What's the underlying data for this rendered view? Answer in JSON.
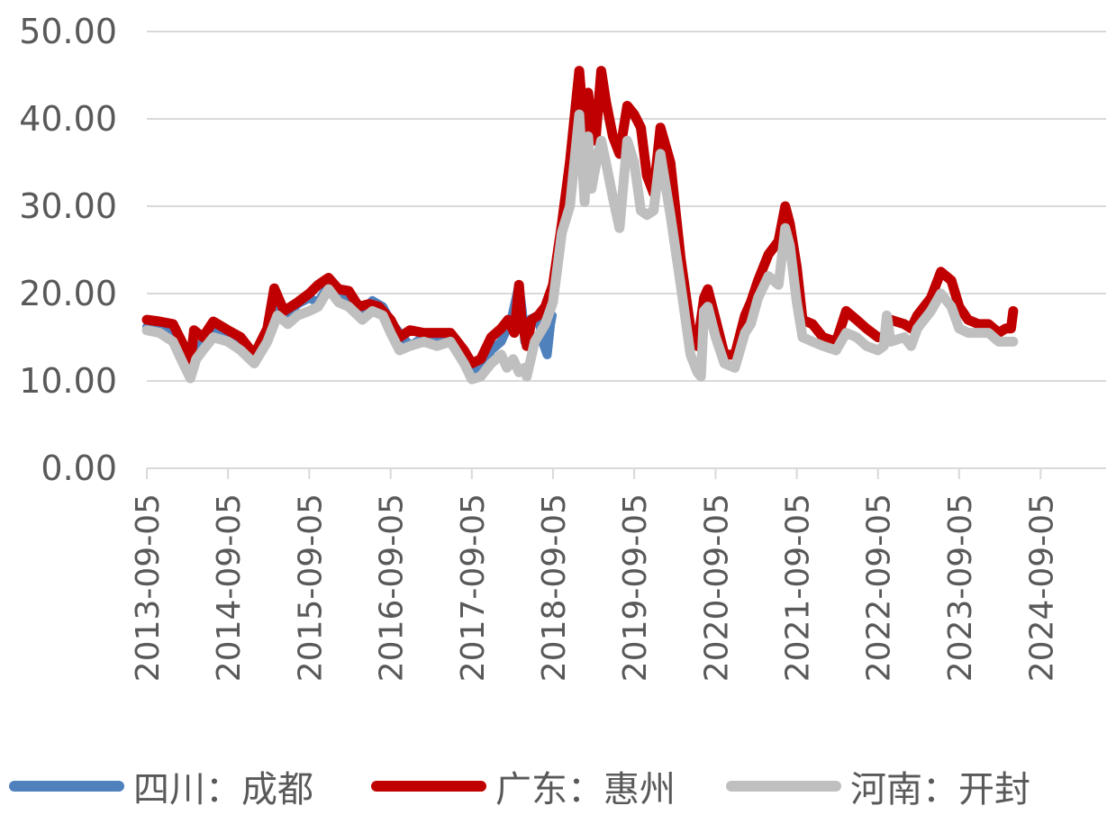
{
  "chart_data": {
    "type": "line",
    "title": "",
    "xlabel": "",
    "ylabel": "",
    "ylim": [
      0,
      50
    ],
    "xlim": [
      "2013-09-05",
      "2025-05-05"
    ],
    "y_ticks": [
      "0.00",
      "10.00",
      "20.00",
      "30.00",
      "40.00",
      "50.00"
    ],
    "x_ticks": [
      "2013-09-05",
      "2014-09-05",
      "2015-09-05",
      "2016-09-05",
      "2017-09-05",
      "2018-09-05",
      "2019-09-05",
      "2020-09-05",
      "2021-09-05",
      "2022-09-05",
      "2023-09-05",
      "2024-09-05"
    ],
    "grid": "horizontal",
    "legend_position": "bottom",
    "series": [
      {
        "name": "四川：成都",
        "color": "#4F81BD",
        "points": [
          [
            "2013-09-05",
            16.2
          ],
          [
            "2013-11-01",
            16.0
          ],
          [
            "2014-01-01",
            15.8
          ],
          [
            "2014-02-15",
            13.5
          ],
          [
            "2014-03-20",
            11.0
          ],
          [
            "2014-04-15",
            13.0
          ],
          [
            "2014-05-15",
            14.5
          ],
          [
            "2014-07-01",
            15.8
          ],
          [
            "2014-09-05",
            15.2
          ],
          [
            "2014-11-01",
            14.2
          ],
          [
            "2015-01-01",
            12.8
          ],
          [
            "2015-03-01",
            15.5
          ],
          [
            "2015-04-15",
            18.5
          ],
          [
            "2015-06-01",
            17.5
          ],
          [
            "2015-07-15",
            18.8
          ],
          [
            "2015-09-05",
            19.5
          ],
          [
            "2015-10-15",
            19.0
          ],
          [
            "2015-12-01",
            21.0
          ],
          [
            "2016-01-15",
            20.0
          ],
          [
            "2016-03-01",
            19.2
          ],
          [
            "2016-05-01",
            17.8
          ],
          [
            "2016-06-15",
            19.2
          ],
          [
            "2016-08-01",
            18.5
          ],
          [
            "2016-09-05",
            16.8
          ],
          [
            "2016-10-15",
            15.5
          ],
          [
            "2016-12-01",
            14.0
          ],
          [
            "2017-02-01",
            15.0
          ],
          [
            "2017-04-01",
            14.8
          ],
          [
            "2017-06-01",
            15.0
          ],
          [
            "2017-08-01",
            13.5
          ],
          [
            "2017-09-05",
            11.5
          ],
          [
            "2017-10-15",
            11.0
          ],
          [
            "2017-12-01",
            13.5
          ],
          [
            "2018-01-15",
            14.5
          ],
          [
            "2018-03-01",
            17.0
          ],
          [
            "2018-04-05",
            21.0
          ],
          [
            "2018-04-20",
            18.0
          ],
          [
            "2018-05-01",
            14.5
          ],
          [
            "2018-05-20",
            17.0
          ],
          [
            "2018-07-01",
            17.5
          ],
          [
            "2018-07-20",
            14.5
          ],
          [
            "2018-08-10",
            13.0
          ],
          [
            "2018-08-25",
            16.5
          ],
          [
            "2018-09-01",
            17.5
          ]
        ]
      },
      {
        "name": "广东：惠州",
        "color": "#C00000",
        "points": [
          [
            "2013-09-05",
            17.0
          ],
          [
            "2013-11-01",
            16.8
          ],
          [
            "2014-01-01",
            16.5
          ],
          [
            "2014-02-15",
            14.2
          ],
          [
            "2014-03-20",
            12.0
          ],
          [
            "2014-04-05",
            15.8
          ],
          [
            "2014-05-15",
            15.0
          ],
          [
            "2014-07-01",
            16.8
          ],
          [
            "2014-09-05",
            15.8
          ],
          [
            "2014-11-01",
            15.0
          ],
          [
            "2015-01-01",
            13.0
          ],
          [
            "2015-03-01",
            16.0
          ],
          [
            "2015-04-01",
            20.6
          ],
          [
            "2015-05-15",
            18.0
          ],
          [
            "2015-07-15",
            19.0
          ],
          [
            "2015-09-05",
            20.0
          ],
          [
            "2015-10-15",
            21.0
          ],
          [
            "2015-12-01",
            21.8
          ],
          [
            "2016-01-15",
            20.5
          ],
          [
            "2016-03-01",
            20.3
          ],
          [
            "2016-04-15",
            18.5
          ],
          [
            "2016-06-01",
            18.8
          ],
          [
            "2016-07-15",
            18.5
          ],
          [
            "2016-09-05",
            17.0
          ],
          [
            "2016-10-15",
            15.0
          ],
          [
            "2016-12-01",
            15.8
          ],
          [
            "2017-02-01",
            15.5
          ],
          [
            "2017-04-01",
            15.5
          ],
          [
            "2017-06-01",
            15.5
          ],
          [
            "2017-08-01",
            13.5
          ],
          [
            "2017-09-05",
            12.0
          ],
          [
            "2017-10-15",
            12.5
          ],
          [
            "2017-12-01",
            15.0
          ],
          [
            "2018-01-15",
            16.0
          ],
          [
            "2018-02-15",
            17.0
          ],
          [
            "2018-03-15",
            15.5
          ],
          [
            "2018-04-05",
            21.0
          ],
          [
            "2018-04-15",
            17.5
          ],
          [
            "2018-05-10",
            14.0
          ],
          [
            "2018-06-01",
            17.0
          ],
          [
            "2018-07-01",
            17.5
          ],
          [
            "2018-08-01",
            18.5
          ],
          [
            "2018-09-05",
            21.0
          ],
          [
            "2018-10-15",
            28.0
          ],
          [
            "2018-11-20",
            35.0
          ],
          [
            "2019-01-01",
            45.5
          ],
          [
            "2019-01-25",
            38.0
          ],
          [
            "2019-02-10",
            43.0
          ],
          [
            "2019-02-25",
            39.0
          ],
          [
            "2019-03-15",
            37.5
          ],
          [
            "2019-04-10",
            45.5
          ],
          [
            "2019-05-01",
            42.0
          ],
          [
            "2019-06-01",
            38.0
          ],
          [
            "2019-07-01",
            36.0
          ],
          [
            "2019-08-05",
            41.5
          ],
          [
            "2019-09-05",
            40.5
          ],
          [
            "2019-10-05",
            39.0
          ],
          [
            "2019-11-01",
            33.5
          ],
          [
            "2019-12-01",
            31.5
          ],
          [
            "2020-01-01",
            39.0
          ],
          [
            "2020-02-15",
            35.0
          ],
          [
            "2020-04-01",
            24.0
          ],
          [
            "2020-05-15",
            16.0
          ],
          [
            "2020-06-15",
            14.0
          ],
          [
            "2020-07-15",
            19.5
          ],
          [
            "2020-08-01",
            20.5
          ],
          [
            "2020-09-05",
            17.0
          ],
          [
            "2020-10-15",
            13.0
          ],
          [
            "2020-12-01",
            13.0
          ],
          [
            "2021-01-15",
            17.5
          ],
          [
            "2021-02-10",
            19.0
          ],
          [
            "2021-03-15",
            21.5
          ],
          [
            "2021-05-01",
            24.5
          ],
          [
            "2021-06-15",
            26.0
          ],
          [
            "2021-07-15",
            30.0
          ],
          [
            "2021-08-05",
            28.0
          ],
          [
            "2021-09-05",
            23.0
          ],
          [
            "2021-10-01",
            17.0
          ],
          [
            "2021-11-15",
            16.5
          ],
          [
            "2022-01-01",
            15.0
          ],
          [
            "2022-03-01",
            14.5
          ],
          [
            "2022-04-15",
            18.0
          ],
          [
            "2022-06-01",
            17.0
          ],
          [
            "2022-07-15",
            16.0
          ],
          [
            "2022-09-05",
            15.0
          ],
          [
            "2022-10-01",
            15.0
          ],
          [
            "2022-11-01",
            17.0
          ],
          [
            "2023-01-01",
            16.5
          ],
          [
            "2023-02-01",
            16.0
          ],
          [
            "2023-03-01",
            17.5
          ],
          [
            "2023-05-01",
            19.5
          ],
          [
            "2023-06-15",
            22.5
          ],
          [
            "2023-08-01",
            21.5
          ],
          [
            "2023-09-05",
            18.5
          ],
          [
            "2023-10-15",
            17.0
          ],
          [
            "2023-12-01",
            16.5
          ],
          [
            "2024-01-15",
            16.5
          ],
          [
            "2024-03-01",
            15.5
          ],
          [
            "2024-04-01",
            16.0
          ],
          [
            "2024-04-25",
            16.0
          ],
          [
            "2024-05-05",
            18.0
          ]
        ]
      },
      {
        "name": "河南：开封",
        "color": "#BFBFBF",
        "points": [
          [
            "2013-09-05",
            15.8
          ],
          [
            "2013-11-01",
            15.5
          ],
          [
            "2014-01-01",
            14.5
          ],
          [
            "2014-02-15",
            12.0
          ],
          [
            "2014-03-20",
            10.3
          ],
          [
            "2014-04-15",
            12.5
          ],
          [
            "2014-05-15",
            13.5
          ],
          [
            "2014-07-01",
            15.0
          ],
          [
            "2014-09-05",
            14.5
          ],
          [
            "2014-11-01",
            13.5
          ],
          [
            "2015-01-01",
            12.0
          ],
          [
            "2015-03-01",
            14.5
          ],
          [
            "2015-04-15",
            17.5
          ],
          [
            "2015-06-01",
            16.5
          ],
          [
            "2015-07-15",
            17.5
          ],
          [
            "2015-09-05",
            18.0
          ],
          [
            "2015-10-15",
            18.5
          ],
          [
            "2015-12-01",
            20.5
          ],
          [
            "2016-01-15",
            19.0
          ],
          [
            "2016-03-01",
            18.5
          ],
          [
            "2016-05-01",
            17.0
          ],
          [
            "2016-06-15",
            18.0
          ],
          [
            "2016-08-01",
            17.5
          ],
          [
            "2016-09-05",
            15.5
          ],
          [
            "2016-10-15",
            13.5
          ],
          [
            "2016-12-01",
            14.0
          ],
          [
            "2017-02-01",
            14.5
          ],
          [
            "2017-04-01",
            14.0
          ],
          [
            "2017-06-01",
            14.5
          ],
          [
            "2017-08-01",
            12.0
          ],
          [
            "2017-09-05",
            10.2
          ],
          [
            "2017-10-15",
            10.5
          ],
          [
            "2017-12-01",
            12.0
          ],
          [
            "2018-01-15",
            13.0
          ],
          [
            "2018-02-10",
            11.5
          ],
          [
            "2018-03-10",
            12.5
          ],
          [
            "2018-04-05",
            11.0
          ],
          [
            "2018-05-01",
            11.5
          ],
          [
            "2018-05-10",
            10.5
          ],
          [
            "2018-06-15",
            14.5
          ],
          [
            "2018-08-01",
            16.5
          ],
          [
            "2018-09-05",
            19.0
          ],
          [
            "2018-10-15",
            27.0
          ],
          [
            "2018-11-20",
            30.0
          ],
          [
            "2019-01-01",
            40.5
          ],
          [
            "2019-01-25",
            30.5
          ],
          [
            "2019-02-10",
            38.0
          ],
          [
            "2019-02-25",
            32.0
          ],
          [
            "2019-03-15",
            34.5
          ],
          [
            "2019-04-10",
            37.5
          ],
          [
            "2019-05-01",
            35.0
          ],
          [
            "2019-06-01",
            31.0
          ],
          [
            "2019-07-01",
            27.5
          ],
          [
            "2019-08-05",
            37.5
          ],
          [
            "2019-09-05",
            35.0
          ],
          [
            "2019-10-05",
            29.5
          ],
          [
            "2019-11-01",
            29.0
          ],
          [
            "2019-12-01",
            29.5
          ],
          [
            "2020-01-01",
            36.0
          ],
          [
            "2020-02-15",
            29.0
          ],
          [
            "2020-04-01",
            21.0
          ],
          [
            "2020-05-15",
            13.0
          ],
          [
            "2020-06-15",
            11.0
          ],
          [
            "2020-07-01",
            10.5
          ],
          [
            "2020-07-15",
            18.0
          ],
          [
            "2020-08-01",
            18.5
          ],
          [
            "2020-09-05",
            15.0
          ],
          [
            "2020-10-15",
            12.0
          ],
          [
            "2020-12-01",
            11.5
          ],
          [
            "2021-01-15",
            15.5
          ],
          [
            "2021-02-10",
            16.5
          ],
          [
            "2021-03-15",
            19.5
          ],
          [
            "2021-05-01",
            22.0
          ],
          [
            "2021-06-15",
            21.0
          ],
          [
            "2021-07-15",
            27.5
          ],
          [
            "2021-08-05",
            25.5
          ],
          [
            "2021-09-05",
            19.0
          ],
          [
            "2021-10-01",
            15.0
          ],
          [
            "2021-11-15",
            14.5
          ],
          [
            "2022-01-01",
            14.0
          ],
          [
            "2022-03-01",
            13.5
          ],
          [
            "2022-04-15",
            15.5
          ],
          [
            "2022-06-01",
            15.0
          ],
          [
            "2022-07-15",
            14.0
          ],
          [
            "2022-09-05",
            13.5
          ],
          [
            "2022-10-01",
            14.0
          ],
          [
            "2022-10-15",
            17.5
          ],
          [
            "2022-11-01",
            14.5
          ],
          [
            "2023-01-01",
            15.0
          ],
          [
            "2023-02-01",
            14.0
          ],
          [
            "2023-03-01",
            16.0
          ],
          [
            "2023-05-01",
            18.0
          ],
          [
            "2023-06-15",
            20.0
          ],
          [
            "2023-08-01",
            18.5
          ],
          [
            "2023-09-05",
            16.0
          ],
          [
            "2023-10-15",
            15.5
          ],
          [
            "2023-12-01",
            15.5
          ],
          [
            "2024-01-15",
            15.5
          ],
          [
            "2024-03-01",
            14.5
          ],
          [
            "2024-04-01",
            14.5
          ],
          [
            "2024-05-05",
            14.5
          ]
        ]
      }
    ]
  }
}
